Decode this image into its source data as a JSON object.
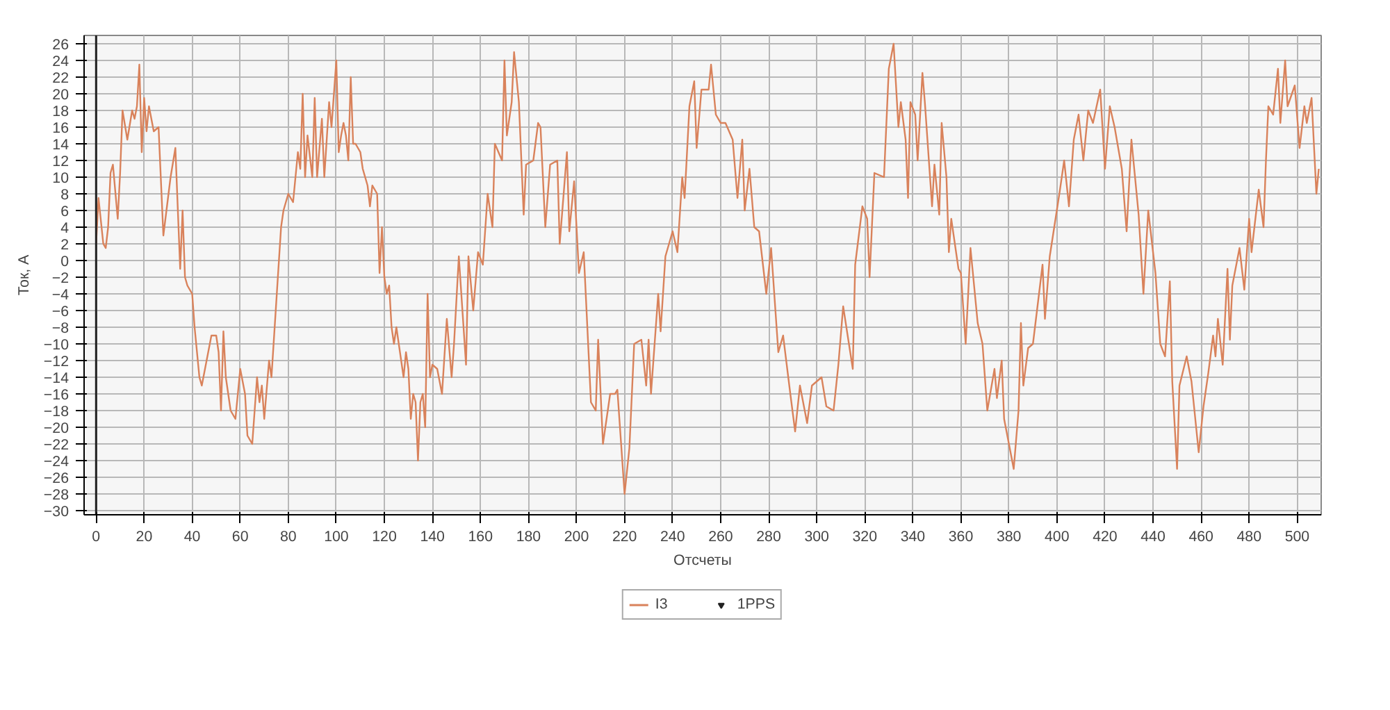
{
  "chart_data": {
    "type": "line",
    "xlabel": "Отсчеты",
    "ylabel": "Ток, А",
    "series": [
      {
        "name": "I3",
        "color": "#d9825b",
        "x": [
          0,
          1,
          3,
          4,
          5,
          6,
          7,
          9,
          10,
          11,
          13,
          15,
          16,
          17,
          18,
          19,
          20,
          21,
          22,
          24,
          26,
          28,
          31,
          33,
          35,
          36,
          37,
          38,
          40,
          41,
          43,
          44,
          46,
          48,
          50,
          51,
          52,
          53,
          54,
          56,
          58,
          60,
          62,
          63,
          65,
          67,
          68,
          69,
          70,
          72,
          73,
          75,
          77,
          78,
          80,
          82,
          84,
          85,
          86,
          87,
          88,
          90,
          91,
          92,
          94,
          95,
          97,
          98,
          99,
          100,
          101,
          102,
          103,
          104,
          105,
          106,
          107,
          108,
          110,
          111,
          113,
          114,
          115,
          117,
          118,
          119,
          120,
          121,
          122,
          123,
          124,
          125,
          126,
          127,
          128,
          129,
          130,
          131,
          132,
          133,
          134,
          135,
          136,
          137,
          138,
          139,
          140,
          142,
          144,
          146,
          148,
          149,
          151,
          154,
          155,
          157,
          159,
          161,
          163,
          165,
          166,
          169,
          170,
          171,
          173,
          174,
          176,
          178,
          179,
          182,
          184,
          185,
          187,
          189,
          192,
          193,
          196,
          197,
          199,
          201,
          203,
          206,
          208,
          209,
          211,
          214,
          216,
          217,
          220,
          222,
          224,
          227,
          229,
          230,
          231,
          234,
          235,
          237,
          240,
          242,
          244,
          245,
          247,
          249,
          250,
          252,
          255,
          256,
          258,
          260,
          262,
          265,
          267,
          269,
          270,
          272,
          274,
          276,
          279,
          281,
          284,
          286,
          289,
          291,
          293,
          296,
          298,
          302,
          304,
          307,
          309,
          311,
          315,
          316,
          319,
          321,
          322,
          324,
          328,
          330,
          332,
          334,
          335,
          337,
          338,
          339,
          341,
          342,
          344,
          345,
          348,
          349,
          351,
          352,
          354,
          355,
          356,
          359,
          360,
          362,
          364,
          367,
          369,
          371,
          374,
          375,
          377,
          378,
          380,
          382,
          384,
          385,
          386,
          388,
          390,
          394,
          395,
          397,
          401,
          403,
          405,
          407,
          409,
          411,
          413,
          415,
          418,
          420,
          422,
          424,
          427,
          429,
          431,
          434,
          436,
          438,
          441,
          443,
          445,
          447,
          448,
          450,
          451,
          454,
          456,
          459,
          461,
          463,
          465,
          466,
          467,
          469,
          471,
          472,
          473,
          476,
          478,
          480,
          481,
          484,
          486,
          487,
          488,
          490,
          492,
          493,
          495,
          496,
          499,
          501,
          503,
          504,
          506,
          508,
          509
        ],
        "values": [
          2,
          7.5,
          2,
          1.5,
          4,
          10.5,
          11.5,
          5,
          10.5,
          18,
          14.5,
          18,
          17,
          18.5,
          23.5,
          13,
          19.5,
          15.5,
          18.5,
          15.5,
          16,
          3,
          10,
          13.5,
          -1,
          6,
          -2,
          -3,
          -4,
          -8,
          -14,
          -15,
          -12,
          -9,
          -9,
          -11,
          -18,
          -8.5,
          -14,
          -18,
          -19,
          -13,
          -16,
          -21,
          -22,
          -14,
          -17,
          -15,
          -19,
          -12,
          -14,
          -5,
          4,
          6,
          8,
          7,
          13,
          11,
          20,
          10,
          15,
          10,
          19.5,
          10,
          17,
          10,
          19,
          16,
          20,
          24,
          13,
          15,
          16.5,
          15,
          12,
          22,
          14,
          14,
          13,
          11,
          9,
          6.5,
          9,
          8,
          -1.5,
          4,
          -2,
          -4,
          -3,
          -8,
          -10,
          -8,
          -10,
          -12,
          -14,
          -11,
          -13,
          -19,
          -16,
          -17,
          -24,
          -17,
          -16,
          -20,
          -4,
          -14,
          -12.5,
          -13,
          -16,
          -7,
          -14,
          -10,
          0.5,
          -12.5,
          0.5,
          -6,
          1,
          -0.5,
          8,
          4,
          14,
          12,
          24,
          15,
          19,
          25,
          19,
          5.5,
          11.5,
          12,
          16.5,
          16,
          4,
          11.5,
          12,
          2,
          13,
          3.5,
          9.5,
          -1.5,
          1,
          -17,
          -18,
          -9.5,
          -22,
          -16,
          -16,
          -15.5,
          -28,
          -22.5,
          -10,
          -9.5,
          -15,
          -9.5,
          -16,
          -4,
          -8.5,
          0.5,
          3.5,
          1,
          10,
          7.5,
          18.5,
          21.5,
          13.5,
          20.5,
          20.5,
          23.5,
          17.5,
          16.5,
          16.5,
          14.5,
          7.5,
          14.5,
          6,
          11,
          4,
          3.5,
          -4,
          1.5,
          -11,
          -9,
          -16,
          -20.5,
          -15,
          -19.5,
          -15,
          -14,
          -17.5,
          -18,
          -12.5,
          -5.5,
          -13,
          -0.5,
          6.5,
          5,
          -2,
          10.5,
          10,
          23,
          26,
          16,
          19,
          14.5,
          7.5,
          19,
          17.5,
          12,
          22.5,
          19,
          6.5,
          11.5,
          5.5,
          16.5,
          10,
          1,
          5,
          -1,
          -1.5,
          -10,
          1.5,
          -7.5,
          -10,
          -18,
          -13,
          -16.5,
          -12,
          -19,
          -22,
          -25,
          -18,
          -7.5,
          -15,
          -10.5,
          -10,
          -0.5,
          -7,
          0.5,
          8,
          12,
          6.5,
          14.5,
          17.5,
          12,
          18,
          16.5,
          20.5,
          11,
          18.5,
          16,
          11,
          3.5,
          14.5,
          5.5,
          -4,
          6,
          -1.5,
          -10,
          -11.5,
          -2.5,
          -14.5,
          -25,
          -15,
          -11.5,
          -14.5,
          -23,
          -17.5,
          -13.5,
          -9,
          -11.5,
          -7,
          -12.5,
          -1,
          -9.5,
          -3,
          1.5,
          -3.5,
          5,
          1,
          8.5,
          4,
          12,
          18.5,
          17.5,
          23,
          16.5,
          24,
          18.5,
          21,
          13.5,
          18.5,
          16.5,
          19.5,
          8,
          11
        ]
      }
    ],
    "xlim": [
      -5,
      510
    ],
    "ylim": [
      -30.5,
      27
    ],
    "xticks": [
      0,
      20,
      40,
      60,
      80,
      100,
      120,
      140,
      160,
      180,
      200,
      220,
      240,
      260,
      280,
      300,
      320,
      340,
      360,
      380,
      400,
      420,
      440,
      460,
      480,
      500
    ],
    "yticks": [
      -30,
      -28,
      -26,
      -24,
      -22,
      -20,
      -18,
      -16,
      -14,
      -12,
      -10,
      -8,
      -6,
      -4,
      -2,
      0,
      2,
      4,
      6,
      8,
      10,
      12,
      14,
      16,
      18,
      20,
      22,
      24,
      26
    ],
    "ref_lines": [
      {
        "axis": "x",
        "value": 0,
        "label": "1PPS",
        "color": "#222222"
      }
    ],
    "grid": true,
    "legend": "bottom",
    "marker": "none",
    "line_style": "solid"
  }
}
